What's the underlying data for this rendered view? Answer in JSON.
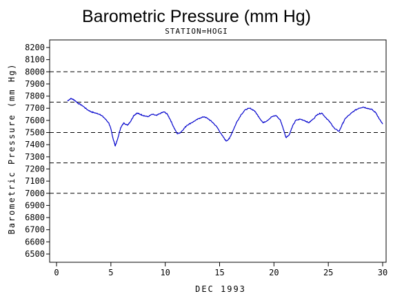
{
  "chart_data": {
    "type": "line",
    "title": "Barometric Pressure (mm Hg)",
    "subtitle": "STATION=HOGI",
    "xlabel": "DEC 1993",
    "ylabel": "Barometric Pressure (mm Hg)",
    "xlim": [
      0,
      30
    ],
    "ylim": [
      6500,
      8200
    ],
    "x_ticks": [
      0,
      5,
      10,
      15,
      20,
      25,
      30
    ],
    "y_ticks": [
      6500,
      6600,
      6700,
      6800,
      6900,
      7000,
      7100,
      7200,
      7300,
      7400,
      7500,
      7600,
      7700,
      7800,
      7900,
      8000,
      8100,
      8200
    ],
    "reference_lines": [
      7000,
      7250,
      7500,
      7750,
      8000
    ],
    "grid": false,
    "line_color": "#0000cc",
    "series": [
      {
        "x": [
          1.0,
          1.3,
          1.6,
          2.0,
          2.4,
          2.8,
          3.2,
          3.6,
          4.0,
          4.4,
          4.8,
          5.0,
          5.2,
          5.4,
          5.6,
          5.9,
          6.2,
          6.5,
          6.8,
          7.1,
          7.4,
          7.7,
          8.0,
          8.4,
          8.8,
          9.2,
          9.6,
          9.9,
          10.2,
          10.5,
          10.8,
          11.1,
          11.4,
          11.7,
          12.0,
          12.4,
          12.8,
          13.2,
          13.6,
          14.0,
          14.4,
          14.8,
          15.2,
          15.6,
          15.9,
          16.2,
          16.6,
          17.0,
          17.4,
          17.8,
          18.2,
          18.6,
          19.0,
          19.4,
          19.8,
          20.2,
          20.6,
          20.9,
          21.1,
          21.4,
          21.7,
          22.0,
          22.4,
          22.8,
          23.2,
          23.6,
          24.0,
          24.4,
          24.8,
          25.2,
          25.6,
          26.0,
          26.3,
          26.6,
          27.0,
          27.4,
          27.8,
          28.2,
          28.6,
          29.0,
          29.4,
          29.7,
          30.0
        ],
        "y": [
          7760,
          7780,
          7770,
          7740,
          7720,
          7690,
          7670,
          7660,
          7650,
          7620,
          7580,
          7530,
          7450,
          7390,
          7440,
          7540,
          7580,
          7560,
          7590,
          7640,
          7660,
          7650,
          7640,
          7630,
          7650,
          7640,
          7660,
          7670,
          7650,
          7600,
          7540,
          7490,
          7500,
          7530,
          7560,
          7580,
          7600,
          7620,
          7630,
          7610,
          7580,
          7540,
          7480,
          7430,
          7450,
          7510,
          7590,
          7650,
          7690,
          7700,
          7680,
          7630,
          7580,
          7600,
          7630,
          7640,
          7600,
          7520,
          7460,
          7480,
          7550,
          7600,
          7610,
          7600,
          7580,
          7610,
          7650,
          7660,
          7620,
          7580,
          7530,
          7510,
          7570,
          7620,
          7650,
          7680,
          7700,
          7710,
          7700,
          7690,
          7660,
          7610,
          7570
        ]
      }
    ]
  }
}
